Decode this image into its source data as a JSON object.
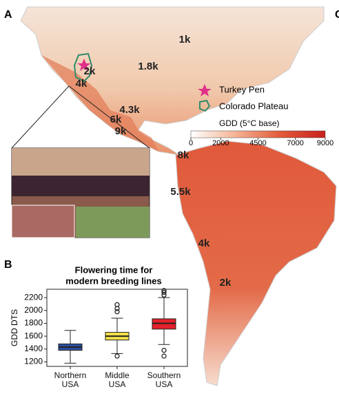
{
  "panels": [
    "A",
    "B",
    "C"
  ],
  "map": {
    "labels": [
      "1k",
      "1.8k",
      "2k",
      "4k",
      "4.3k",
      "6k",
      "9k",
      "8k",
      "5.5k",
      "4k",
      "2k"
    ],
    "legend": [
      "Turkey Pen",
      "Colorado Plateau"
    ],
    "colorbar": {
      "title": "GDD (5°C base)",
      "lim": [
        0,
        9000
      ],
      "ticks": [
        0,
        2000,
        4500,
        7000,
        9000
      ],
      "colors": [
        "#ffffff",
        "#f4b394",
        "#e25a3a",
        "#c8201c"
      ]
    }
  },
  "chart_data": {
    "type": "box",
    "title": [
      "Flowering time for",
      "modern breeding lines"
    ],
    "y_label": "GDD DTS",
    "categories": [
      "Northern USA",
      "Middle USA",
      "Southern USA"
    ],
    "colors": [
      "#2c4f9e",
      "#f4e04a",
      "#e4212b"
    ],
    "boxes": [
      {
        "whisker_low": 1180,
        "q1": 1380,
        "median": 1430,
        "q3": 1480,
        "whisker_high": 1690,
        "outliers": []
      },
      {
        "whisker_low": 1330,
        "q1": 1540,
        "median": 1600,
        "q3": 1660,
        "whisker_high": 1880,
        "outliers": [
          1290,
          1980,
          2030,
          2090
        ]
      },
      {
        "whisker_low": 1470,
        "q1": 1710,
        "median": 1800,
        "q3": 1870,
        "whisker_high": 2200,
        "outliers": [
          1380,
          1290,
          2240,
          2280,
          2310
        ]
      }
    ],
    "ylim": [
      1130,
      2330
    ],
    "yticks": [
      1200,
      1400,
      1600,
      1800,
      2000,
      2200
    ]
  }
}
